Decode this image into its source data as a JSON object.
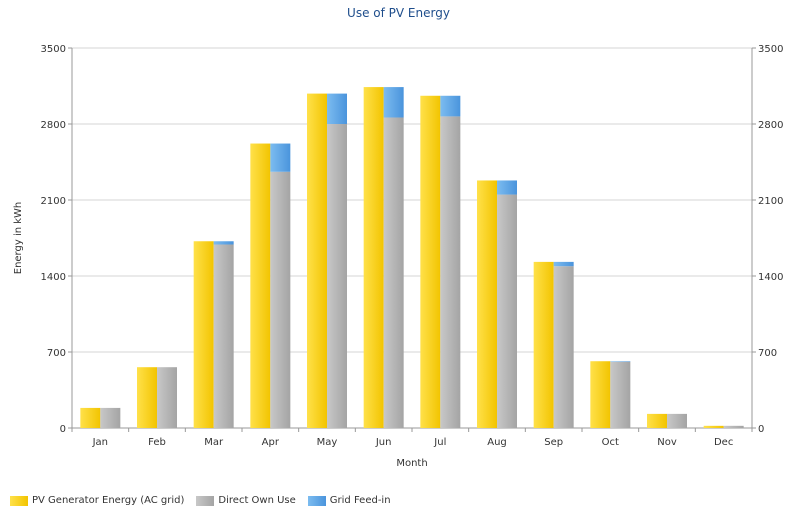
{
  "chart_data": {
    "type": "bar",
    "title": "Use of PV Energy",
    "xlabel": "Month",
    "ylabel": "Energy in kWh",
    "categories": [
      "Jan",
      "Feb",
      "Mar",
      "Apr",
      "May",
      "Jun",
      "Jul",
      "Aug",
      "Sep",
      "Oct",
      "Nov",
      "Dec"
    ],
    "ylim": [
      0,
      3500
    ],
    "yticks": [
      0,
      700,
      1400,
      2100,
      2800,
      3500
    ],
    "grid": true,
    "legend_position": "bottom-left",
    "series": [
      {
        "name": "PV Generator Energy (AC grid)",
        "color": "#ffd400",
        "values": [
          185,
          560,
          1720,
          2620,
          3080,
          3140,
          3060,
          2280,
          1530,
          615,
          130,
          20
        ]
      },
      {
        "name": "Direct Own Use",
        "color": "#b0b0b0",
        "stack": "use",
        "values": [
          185,
          560,
          1690,
          2360,
          2800,
          2860,
          2870,
          2150,
          1490,
          610,
          130,
          20
        ]
      },
      {
        "name": "Grid Feed-in",
        "color": "#5aa4e6",
        "stack": "use",
        "values": [
          0,
          0,
          30,
          260,
          280,
          280,
          190,
          130,
          40,
          5,
          0,
          0
        ]
      }
    ]
  }
}
